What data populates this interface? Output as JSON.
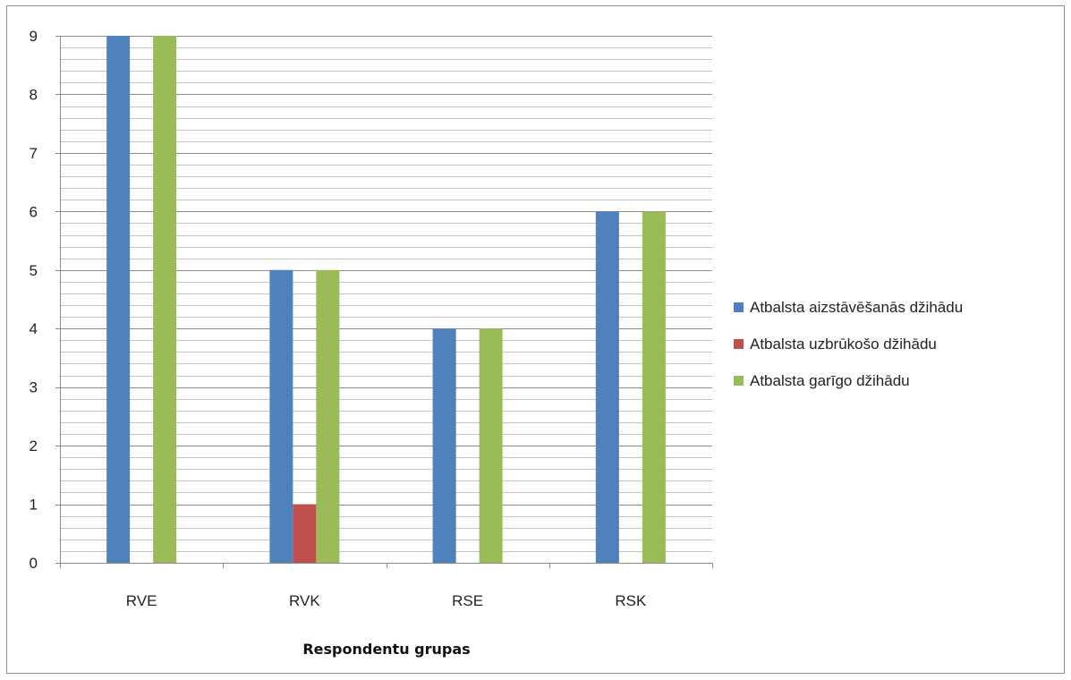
{
  "chart_data": {
    "type": "bar",
    "title": "",
    "xlabel": "Respondentu grupas",
    "ylabel": "",
    "ylim": [
      0,
      9
    ],
    "y_ticks": [
      "0",
      "1",
      "2",
      "3",
      "4",
      "5",
      "6",
      "7",
      "8",
      "9"
    ],
    "minor_gridlines_per_unit": 5,
    "grid": true,
    "legend_position": "right",
    "categories": [
      "RVE",
      "RVK",
      "RSE",
      "RSK"
    ],
    "series": [
      {
        "name": "Atbalsta aizstāvēšanās džihādu",
        "color": "#4f81bd",
        "values": [
          9,
          5,
          4,
          6
        ]
      },
      {
        "name": "Atbalsta uzbrūkošo džihādu",
        "color": "#c0504d",
        "values": [
          0,
          1,
          0,
          0
        ]
      },
      {
        "name": "Atbalsta garīgo džihādu",
        "color": "#9bbb59",
        "values": [
          9,
          5,
          4,
          6
        ]
      }
    ]
  }
}
